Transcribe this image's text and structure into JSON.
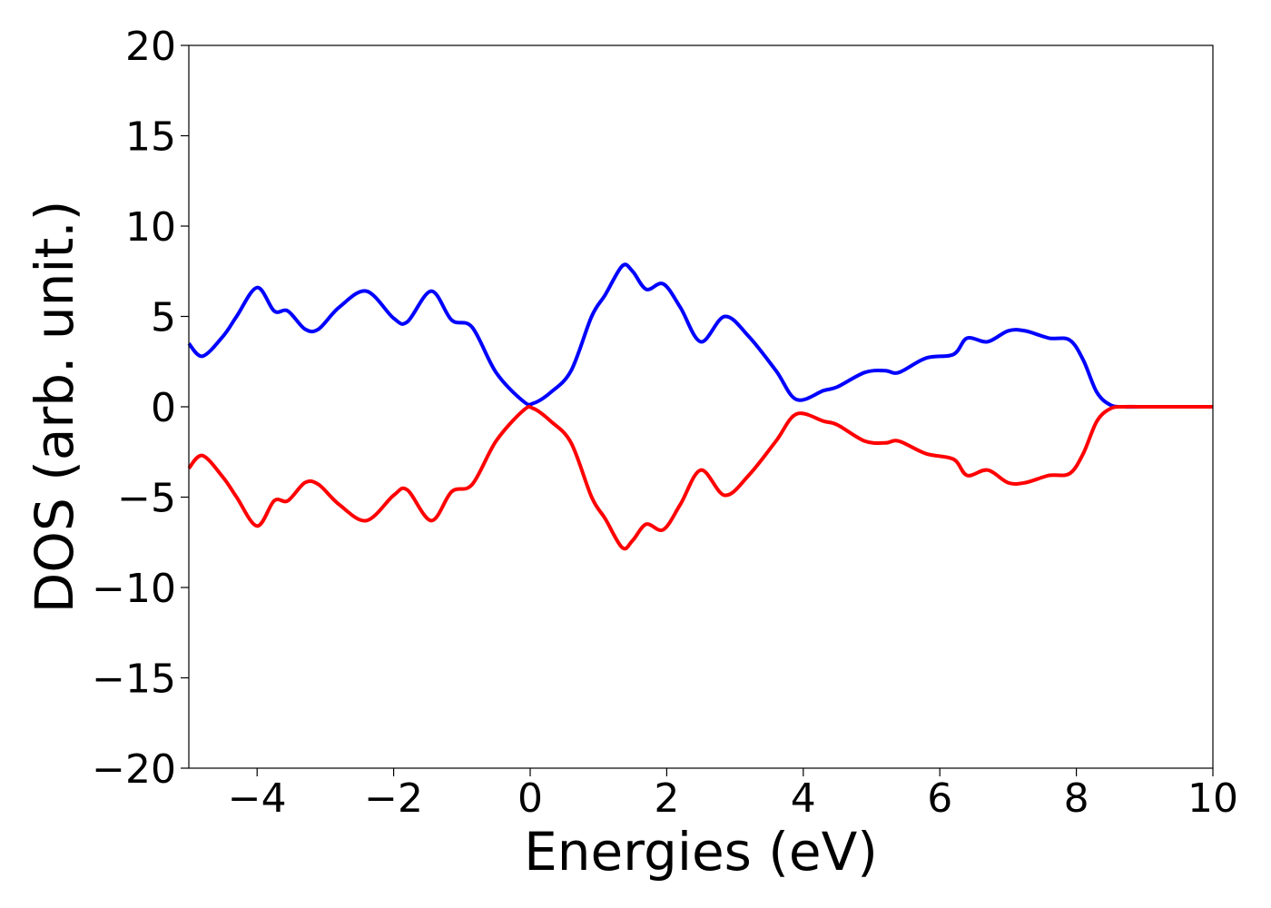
{
  "chart_data": {
    "type": "line",
    "xlabel": "Energies (eV)",
    "ylabel": "DOS (arb. unit.)",
    "xlim": [
      -5,
      10
    ],
    "ylim": [
      -20,
      20
    ],
    "xticks": [
      -4,
      -2,
      0,
      2,
      4,
      6,
      8,
      10
    ],
    "xtick_labels": [
      "−4",
      "−2",
      "0",
      "2",
      "4",
      "6",
      "8",
      "10"
    ],
    "yticks": [
      -20,
      -15,
      -10,
      -5,
      0,
      5,
      10,
      15,
      20
    ],
    "ytick_labels": [
      "−20",
      "−15",
      "−10",
      "−5",
      "0",
      "5",
      "10",
      "15",
      "20"
    ],
    "grid": false,
    "series": [
      {
        "color": "#0000ff",
        "x": [
          -5.0,
          -4.8,
          -4.5,
          -4.3,
          -4.0,
          -3.75,
          -3.55,
          -3.3,
          -3.1,
          -2.8,
          -2.4,
          -2.0,
          -1.8,
          -1.45,
          -1.15,
          -0.85,
          -0.5,
          -0.1,
          0.05,
          0.3,
          0.6,
          0.9,
          1.1,
          1.35,
          1.5,
          1.7,
          1.95,
          2.2,
          2.5,
          2.85,
          3.2,
          3.6,
          3.9,
          4.3,
          4.5,
          4.9,
          5.2,
          5.4,
          5.8,
          6.2,
          6.4,
          6.7,
          7.0,
          7.25,
          7.6,
          7.9,
          8.1,
          8.3,
          8.5,
          8.7,
          9.0,
          10.0
        ],
        "values": [
          3.5,
          2.8,
          3.9,
          5.0,
          6.6,
          5.3,
          5.3,
          4.3,
          4.3,
          5.5,
          6.4,
          4.9,
          4.7,
          6.4,
          4.8,
          4.4,
          1.9,
          0.3,
          0.2,
          0.8,
          2.0,
          5.0,
          6.2,
          7.8,
          7.5,
          6.5,
          6.8,
          5.5,
          3.6,
          5.0,
          3.9,
          2.0,
          0.4,
          0.9,
          1.1,
          1.9,
          2.0,
          1.9,
          2.7,
          2.9,
          3.8,
          3.6,
          4.2,
          4.2,
          3.8,
          3.7,
          2.6,
          0.8,
          0.1,
          0.0,
          0.0,
          0.0
        ]
      },
      {
        "color": "#ff0000",
        "x": [
          -5.0,
          -4.8,
          -4.5,
          -4.3,
          -4.0,
          -3.75,
          -3.55,
          -3.3,
          -3.1,
          -2.8,
          -2.4,
          -2.0,
          -1.8,
          -1.45,
          -1.15,
          -0.85,
          -0.5,
          -0.1,
          0.05,
          0.3,
          0.6,
          0.9,
          1.1,
          1.35,
          1.5,
          1.7,
          1.95,
          2.2,
          2.5,
          2.85,
          3.2,
          3.6,
          3.9,
          4.3,
          4.5,
          4.9,
          5.2,
          5.4,
          5.8,
          6.2,
          6.4,
          6.7,
          7.0,
          7.25,
          7.6,
          7.9,
          8.1,
          8.3,
          8.5,
          8.7,
          9.0,
          10.0
        ],
        "values": [
          -3.4,
          -2.7,
          -3.9,
          -5.0,
          -6.6,
          -5.2,
          -5.2,
          -4.2,
          -4.3,
          -5.4,
          -6.3,
          -4.9,
          -4.6,
          -6.3,
          -4.7,
          -4.3,
          -1.9,
          -0.2,
          -0.1,
          -0.8,
          -2.0,
          -5.0,
          -6.2,
          -7.8,
          -7.4,
          -6.5,
          -6.8,
          -5.4,
          -3.5,
          -4.9,
          -3.8,
          -1.9,
          -0.4,
          -0.8,
          -1.0,
          -1.9,
          -2.0,
          -1.9,
          -2.6,
          -2.9,
          -3.8,
          -3.5,
          -4.2,
          -4.2,
          -3.8,
          -3.7,
          -2.6,
          -0.8,
          -0.1,
          0.0,
          0.0,
          0.0
        ]
      }
    ]
  }
}
